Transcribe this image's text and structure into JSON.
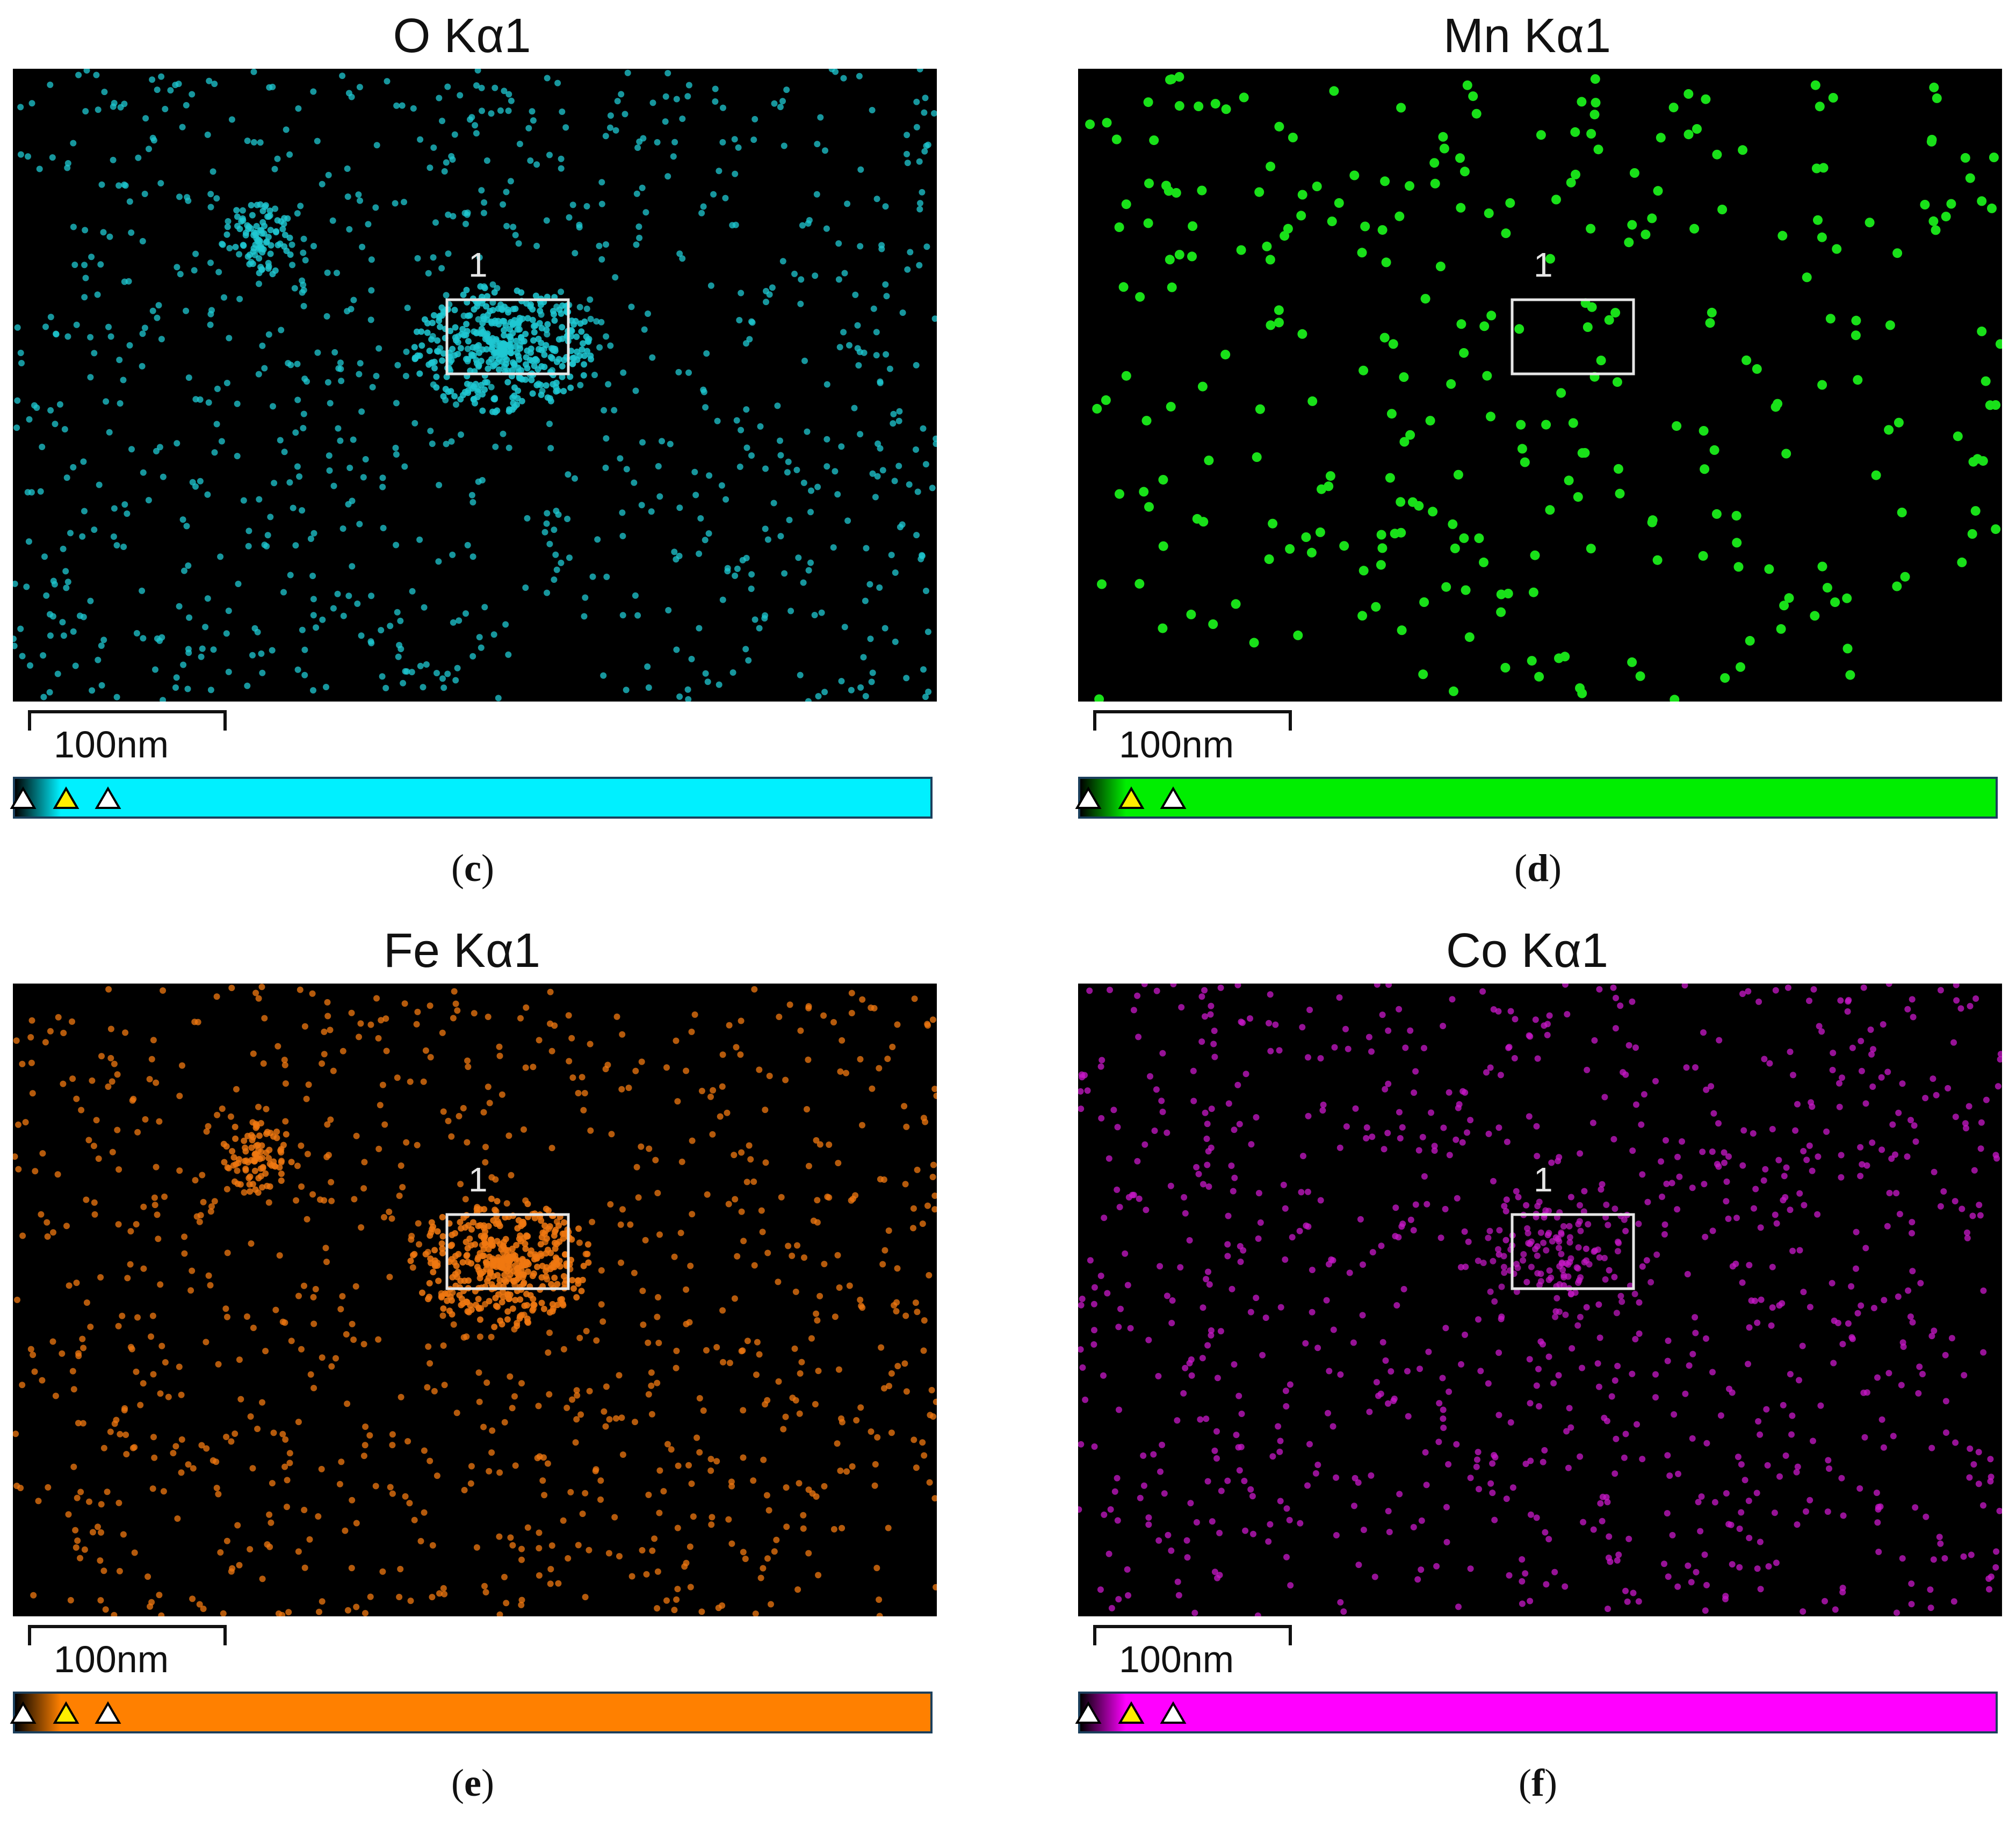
{
  "panels": [
    {
      "id": "c",
      "title": "O Kα1",
      "color": "#1fc8d2",
      "bar": "#00f0ff",
      "caption_letter": "c",
      "scale": "100nm",
      "roi": "1",
      "cluster": true,
      "cluster2": true
    },
    {
      "id": "d",
      "title": "Mn Kα1",
      "color": "#19e019",
      "bar": "#00ee00",
      "caption_letter": "d",
      "scale": "100nm",
      "roi": "1",
      "cluster": false,
      "cluster2": false
    },
    {
      "id": "e",
      "title": "Fe Kα1",
      "color": "#f07810",
      "bar": "#ff8000",
      "caption_letter": "e",
      "scale": "100nm",
      "roi": "1",
      "cluster": true,
      "cluster2": true
    },
    {
      "id": "f",
      "title": "Co Kα1",
      "color": "#c818c8",
      "bar": "#ff00ff",
      "caption_letter": "f",
      "scale": "100nm",
      "roi": "1",
      "cluster": true,
      "cluster2": false
    }
  ]
}
